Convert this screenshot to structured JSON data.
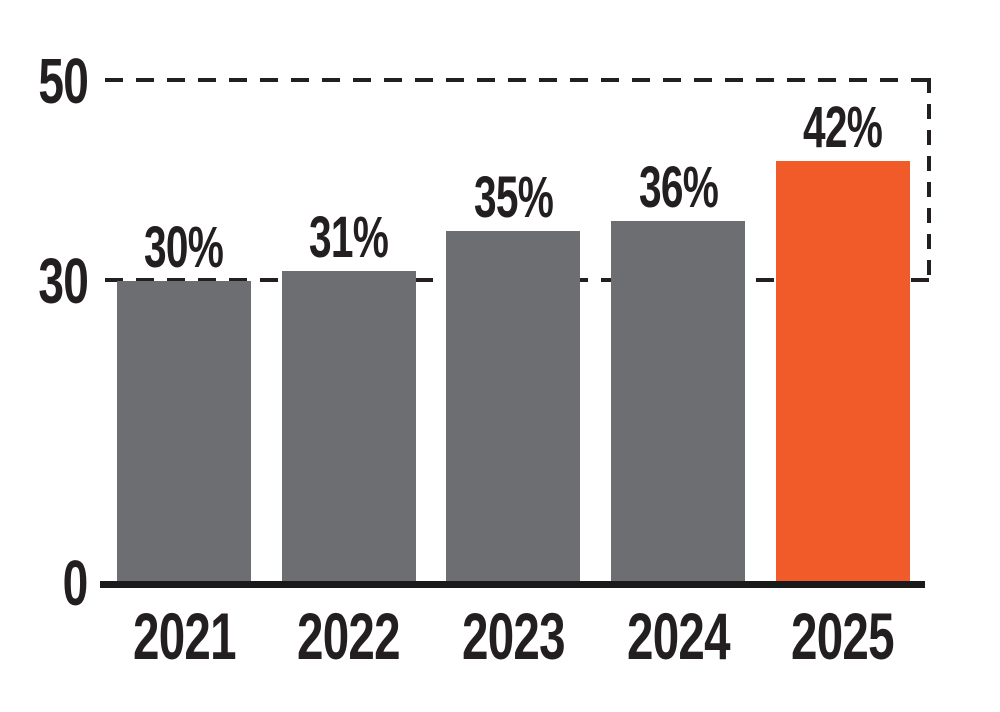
{
  "chart_data": {
    "type": "bar",
    "categories": [
      "2021",
      "2022",
      "2023",
      "2024",
      "2025"
    ],
    "values": [
      30,
      31,
      35,
      36,
      42
    ],
    "value_labels": [
      "30%",
      "31%",
      "35%",
      "36%",
      "42%"
    ],
    "bar_colors": [
      "#6D6E71",
      "#6D6E71",
      "#6D6E71",
      "#6D6E71",
      "#F15A29"
    ],
    "highlight_index": 4,
    "title": "",
    "xlabel": "",
    "ylabel": "",
    "ylim": [
      0,
      50
    ],
    "yticks": [
      {
        "value": 0,
        "label": "0"
      },
      {
        "value": 30,
        "label": "30"
      },
      {
        "value": 50,
        "label": "50"
      }
    ],
    "dashed_gridlines": [
      50,
      30
    ],
    "right_connector_between": [
      50,
      30
    ],
    "legend": null,
    "grid": "dashed horizontal at 30 and 50 only"
  },
  "colors": {
    "bar_default": "#6D6E71",
    "bar_highlight": "#F15A29",
    "line_and_text": "#231F20",
    "axis_baseline": "#1A1A1A",
    "background": "#ffffff"
  }
}
